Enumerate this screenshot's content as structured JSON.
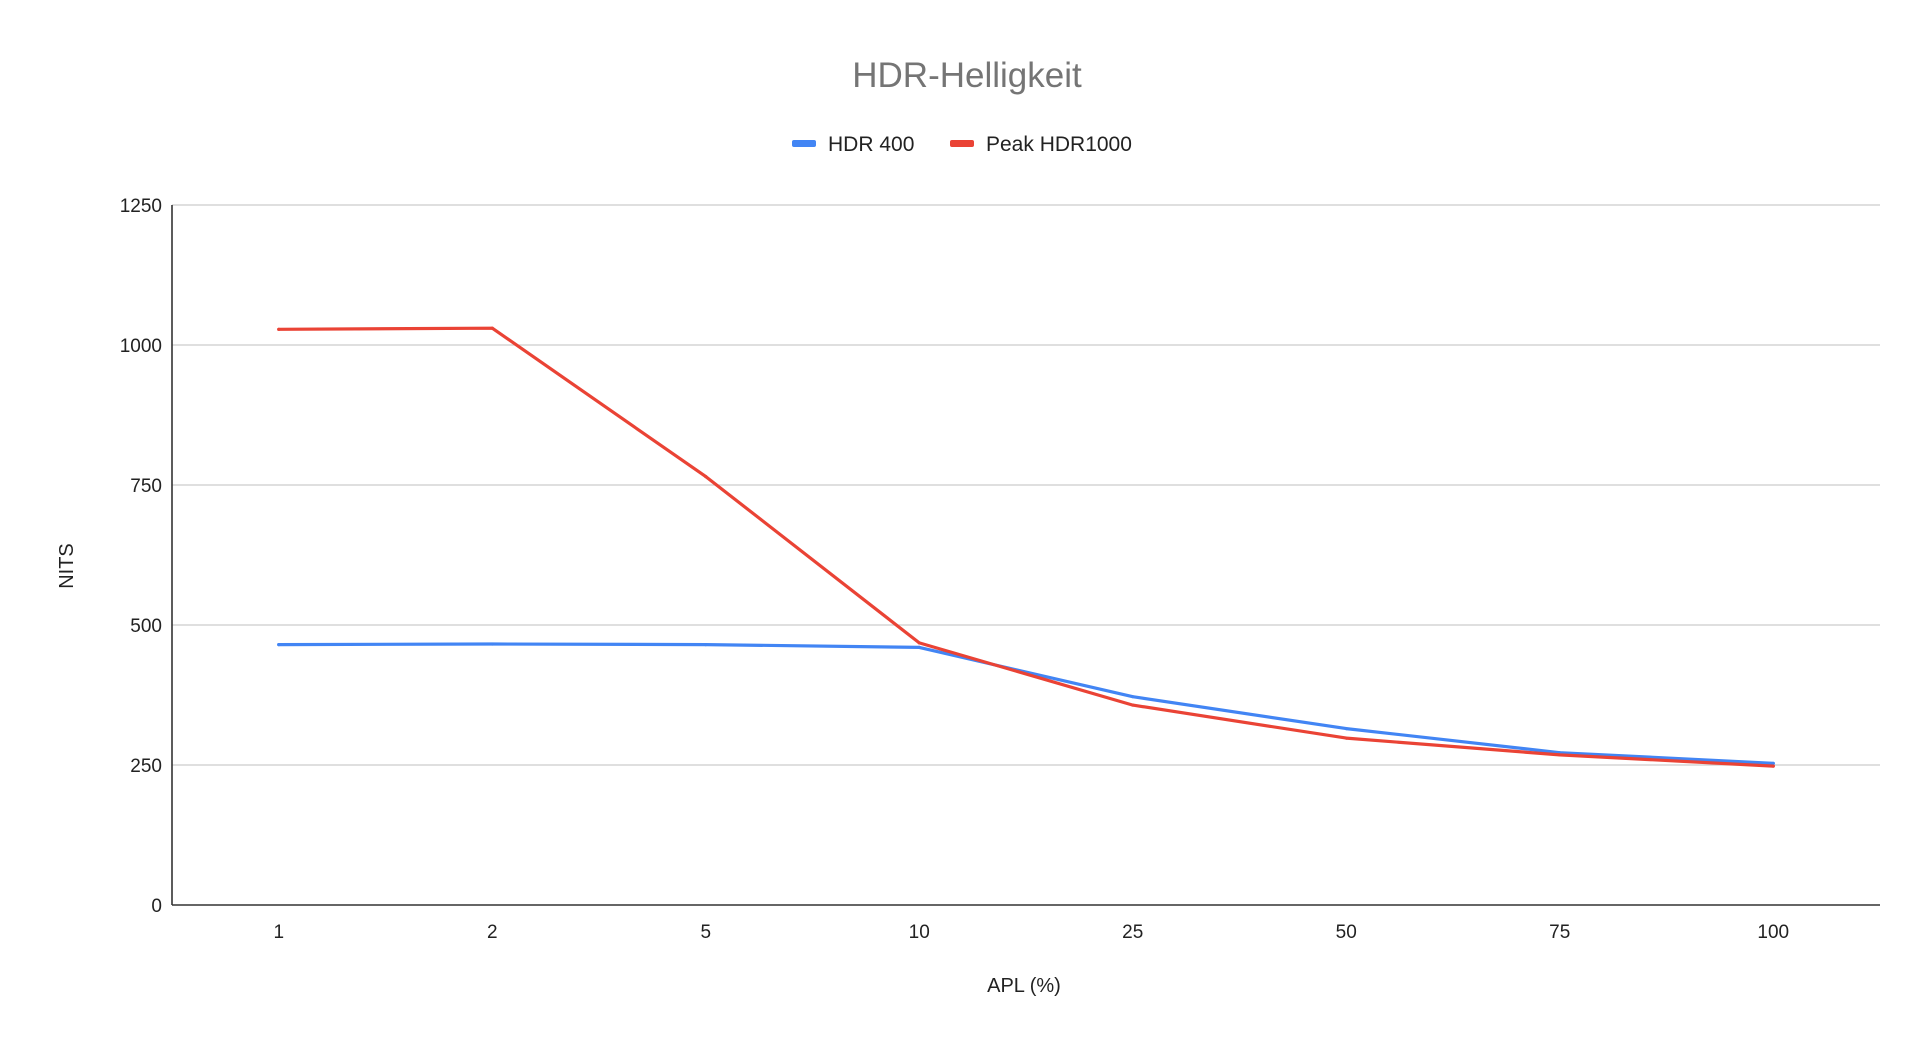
{
  "chart_data": {
    "type": "line",
    "title": "HDR-Helligkeit",
    "xlabel": "APL (%)",
    "ylabel": "NITS",
    "categories": [
      "1",
      "2",
      "5",
      "10",
      "25",
      "50",
      "75",
      "100"
    ],
    "ylim": [
      0,
      1250
    ],
    "yticks": [
      "0",
      "250",
      "500",
      "750",
      "1000",
      "1250"
    ],
    "grid": true,
    "legend_position": "top-center",
    "series": [
      {
        "name": "HDR 400",
        "color": "#4285f4",
        "values": [
          465,
          466,
          465,
          460,
          372,
          315,
          272,
          253
        ]
      },
      {
        "name": "Peak HDR1000",
        "color": "#ea4335",
        "values": [
          1028,
          1030,
          765,
          468,
          357,
          298,
          268,
          248
        ]
      }
    ]
  }
}
